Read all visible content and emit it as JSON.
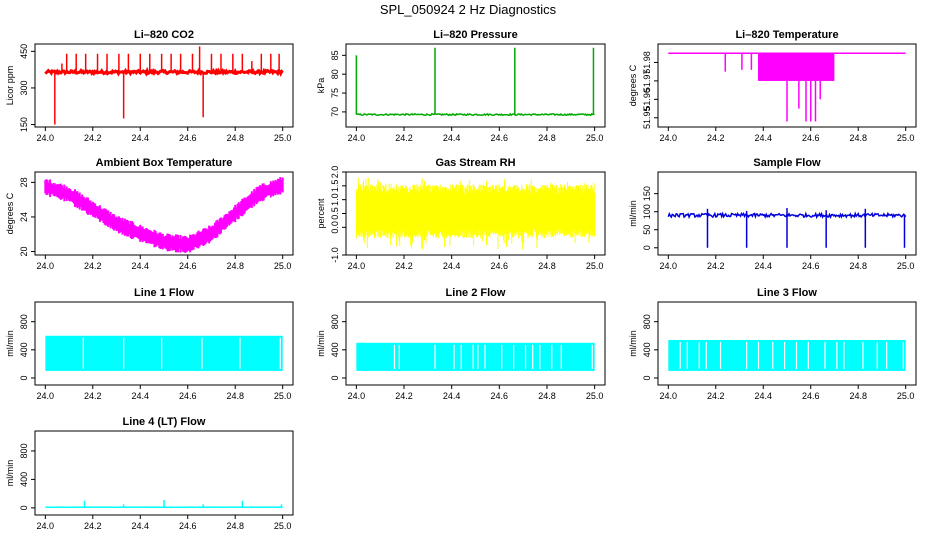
{
  "page": {
    "title": "SPL_050924  2 Hz Diagnostics"
  },
  "chart_data": [
    {
      "id": "co2",
      "type": "line",
      "title": "Li–820 CO2",
      "xlabel": "",
      "ylabel": "Licor ppm",
      "xlim": [
        24.0,
        25.0
      ],
      "ylim": [
        140,
        480
      ],
      "xticks": [
        "24.0",
        "24.2",
        "24.4",
        "24.6",
        "24.8",
        "25.0"
      ],
      "yticks": [
        "150",
        "300",
        "450"
      ],
      "extra_yticks": [],
      "color": "#ff0000",
      "render": "baseline_spikes",
      "series": [
        {
          "baseline": 365,
          "noise": 6,
          "spikes": [
            [
              24.04,
              150
            ],
            [
              24.07,
              400
            ],
            [
              24.09,
              440
            ],
            [
              24.13,
              440
            ],
            [
              24.17,
              440
            ],
            [
              24.22,
              440
            ],
            [
              24.26,
              440
            ],
            [
              24.31,
              440
            ],
            [
              24.33,
              175
            ],
            [
              24.35,
              440
            ],
            [
              24.4,
              440
            ],
            [
              24.44,
              440
            ],
            [
              24.49,
              440
            ],
            [
              24.53,
              440
            ],
            [
              24.57,
              440
            ],
            [
              24.62,
              440
            ],
            [
              24.65,
              470
            ],
            [
              24.665,
              180
            ],
            [
              24.7,
              440
            ],
            [
              24.74,
              440
            ],
            [
              24.79,
              440
            ],
            [
              24.83,
              440
            ],
            [
              24.87,
              410
            ],
            [
              24.91,
              440
            ],
            [
              24.95,
              440
            ],
            [
              24.985,
              440
            ]
          ]
        }
      ]
    },
    {
      "id": "pressure",
      "type": "line",
      "title": "Li–820 Pressure",
      "xlabel": "",
      "ylabel": "kPa",
      "xlim": [
        24.0,
        25.0
      ],
      "ylim": [
        66,
        88
      ],
      "xticks": [
        "24.0",
        "24.2",
        "24.4",
        "24.6",
        "24.8",
        "25.0"
      ],
      "yticks": [
        "70",
        "75",
        "80",
        "85"
      ],
      "extra_yticks": [],
      "color": "#00aa00",
      "render": "baseline_spikes",
      "series": [
        {
          "baseline": 69.3,
          "noise": 0.2,
          "spikes": [
            [
              24.0,
              85
            ],
            [
              24.33,
              87
            ],
            [
              24.665,
              87
            ],
            [
              24.995,
              87
            ]
          ]
        }
      ]
    },
    {
      "id": "temp820",
      "type": "line",
      "title": "Li–820 Temperature",
      "xlabel": "",
      "ylabel": "degrees C",
      "xlim": [
        24.0,
        25.0
      ],
      "ylim": [
        51.945,
        51.99
      ],
      "xticks": [
        "24.0",
        "24.2",
        "24.4",
        "24.6",
        "24.8",
        "25.0"
      ],
      "yticks": [
        "51.95",
        "51.96",
        "51.97",
        "51.98"
      ],
      "extra_yticks": [],
      "color": "#ff00ff",
      "render": "steps",
      "series": [
        {
          "baseline": 51.985,
          "low": 51.97,
          "band": [
            24.38,
            24.7
          ],
          "drops": [
            [
              24.24,
              51.975
            ],
            [
              24.31,
              51.976
            ],
            [
              24.35,
              51.976
            ],
            [
              24.5,
              51.948
            ],
            [
              24.55,
              51.955
            ],
            [
              24.58,
              51.948
            ],
            [
              24.6,
              51.948
            ],
            [
              24.62,
              51.948
            ],
            [
              24.64,
              51.96
            ]
          ]
        }
      ]
    },
    {
      "id": "ambient",
      "type": "area",
      "title": "Ambient Box Temperature",
      "xlabel": "",
      "ylabel": "degrees C",
      "xlim": [
        24.0,
        25.0
      ],
      "ylim": [
        19.6,
        29.2
      ],
      "xticks": [
        "24.0",
        "24.2",
        "24.4",
        "24.6",
        "24.8",
        "25.0"
      ],
      "yticks": [
        "20",
        "24",
        "28"
      ],
      "extra_yticks": [],
      "color": "#ff00ff",
      "render": "band",
      "series": [
        {
          "x": [
            24.0,
            24.1,
            24.2,
            24.3,
            24.4,
            24.5,
            24.6,
            24.7,
            24.8,
            24.9,
            25.0
          ],
          "center": [
            27.5,
            26.6,
            24.9,
            23.2,
            22.1,
            21.1,
            20.8,
            22.1,
            24.4,
            26.7,
            27.7
          ],
          "halfwidth": 0.8
        }
      ]
    },
    {
      "id": "rh",
      "type": "area",
      "title": "Gas Stream RH",
      "xlabel": "",
      "ylabel": "percent",
      "xlim": [
        24.0,
        25.0
      ],
      "ylim": [
        -1.0,
        2.0
      ],
      "xticks": [
        "24.0",
        "24.2",
        "24.4",
        "24.6",
        "24.8",
        "25.0"
      ],
      "yticks": [
        "-1.0",
        "0.0",
        "0.5",
        "1.0",
        "1.5",
        "2.0"
      ],
      "extra_yticks": [],
      "color": "#ffff00",
      "render": "noise_band",
      "series": [
        {
          "top": 1.55,
          "bottom": -0.4,
          "spike_top": 1.8,
          "spike_bottom": -0.8
        }
      ]
    },
    {
      "id": "sample",
      "type": "line",
      "title": "Sample Flow",
      "xlabel": "",
      "ylabel": "ml/min",
      "xlim": [
        24.0,
        25.0
      ],
      "ylim": [
        -20,
        210
      ],
      "xticks": [
        "24.0",
        "24.2",
        "24.4",
        "24.6",
        "24.8",
        "25.0"
      ],
      "yticks": [
        "0",
        "50",
        "100",
        "150"
      ],
      "extra_yticks": [],
      "color": "#0000dd",
      "render": "baseline_spikes",
      "series": [
        {
          "baseline": 90,
          "noise": 5,
          "spikes": [
            [
              24.165,
              0
            ],
            [
              24.33,
              0
            ],
            [
              24.5,
              0
            ],
            [
              24.665,
              0
            ],
            [
              24.83,
              0
            ],
            [
              24.995,
              0
            ],
            [
              24.165,
              108
            ],
            [
              24.33,
              102
            ],
            [
              24.5,
              110
            ],
            [
              24.665,
              104
            ],
            [
              24.83,
              108
            ]
          ]
        }
      ]
    },
    {
      "id": "line1",
      "type": "area",
      "title": "Line 1 Flow",
      "xlabel": "",
      "ylabel": "ml/min",
      "xlim": [
        24.0,
        25.0
      ],
      "ylim": [
        -100,
        1080
      ],
      "xticks": [
        "24.0",
        "24.2",
        "24.4",
        "24.6",
        "24.8",
        "25.0"
      ],
      "yticks": [
        "0",
        "400",
        "800"
      ],
      "extra_yticks": [],
      "color": "#00ffff",
      "render": "blocks",
      "series": [
        {
          "top": 600,
          "bottom": 100,
          "gaps": [
            24.16,
            24.33,
            24.49,
            24.66,
            24.82,
            24.99
          ]
        }
      ]
    },
    {
      "id": "line2",
      "type": "area",
      "title": "Line 2 Flow",
      "xlabel": "",
      "ylabel": "ml/min",
      "xlim": [
        24.0,
        25.0
      ],
      "ylim": [
        -100,
        1080
      ],
      "xticks": [
        "24.0",
        "24.2",
        "24.4",
        "24.6",
        "24.8",
        "25.0"
      ],
      "yticks": [
        "0",
        "400",
        "800"
      ],
      "extra_yticks": [],
      "color": "#00ffff",
      "render": "blocks",
      "series": [
        {
          "top": 500,
          "bottom": 100,
          "gaps": [
            24.16,
            24.18,
            24.33,
            24.41,
            24.44,
            24.49,
            24.51,
            24.54,
            24.61,
            24.66,
            24.71,
            24.74,
            24.77,
            24.82,
            24.86,
            24.99
          ]
        }
      ]
    },
    {
      "id": "line3",
      "type": "area",
      "title": "Line 3 Flow",
      "xlabel": "",
      "ylabel": "ml/min",
      "xlim": [
        24.0,
        25.0
      ],
      "ylim": [
        -100,
        1080
      ],
      "xticks": [
        "24.0",
        "24.2",
        "24.4",
        "24.6",
        "24.8",
        "25.0"
      ],
      "yticks": [
        "0",
        "400",
        "800"
      ],
      "extra_yticks": [],
      "color": "#00ffff",
      "render": "blocks",
      "series": [
        {
          "top": 540,
          "bottom": 100,
          "gaps": [
            24.05,
            24.08,
            24.13,
            24.16,
            24.22,
            24.33,
            24.38,
            24.44,
            24.49,
            24.54,
            24.59,
            24.66,
            24.71,
            24.74,
            24.82,
            24.88,
            24.92,
            24.99
          ]
        }
      ]
    },
    {
      "id": "line4",
      "type": "line",
      "title": "Line 4 (LT) Flow",
      "xlabel": "",
      "ylabel": "ml/min",
      "xlim": [
        24.0,
        25.0
      ],
      "ylim": [
        -100,
        1080
      ],
      "xticks": [
        "24.0",
        "24.2",
        "24.4",
        "24.6",
        "24.8",
        "25.0"
      ],
      "yticks": [
        "0",
        "400",
        "800"
      ],
      "extra_yticks": [],
      "color": "#00ffff",
      "render": "baseline_spikes",
      "series": [
        {
          "baseline": 10,
          "noise": 2,
          "spikes": [
            [
              24.165,
              100
            ],
            [
              24.33,
              50
            ],
            [
              24.5,
              110
            ],
            [
              24.665,
              50
            ],
            [
              24.83,
              100
            ],
            [
              24.995,
              50
            ]
          ]
        }
      ]
    }
  ]
}
